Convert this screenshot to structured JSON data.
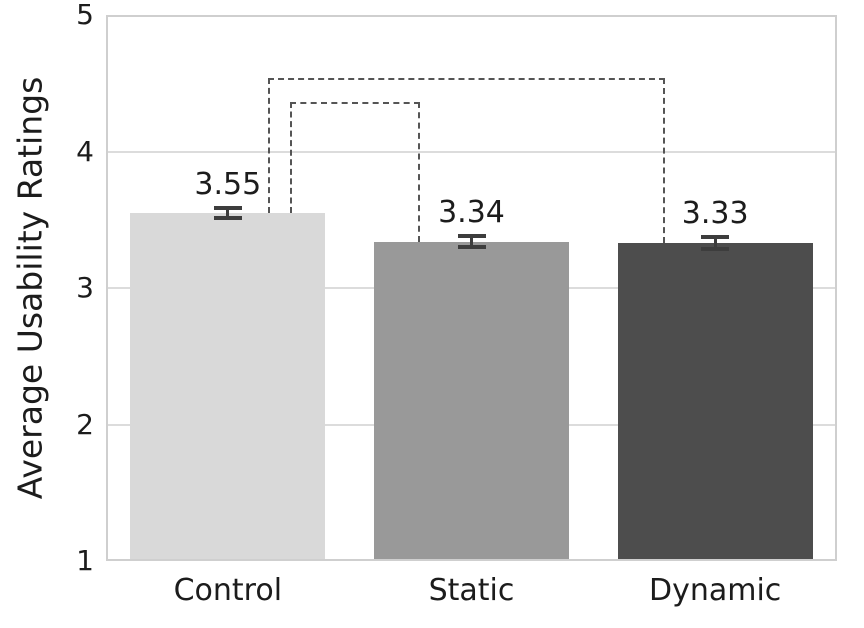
{
  "chart_data": {
    "type": "bar",
    "title": "",
    "xlabel": "",
    "ylabel": "Average Usability Ratings",
    "categories": [
      "Control",
      "Static",
      "Dynamic"
    ],
    "values": [
      3.55,
      3.34,
      3.33
    ],
    "value_labels": [
      "3.55",
      "3.34",
      "3.33"
    ],
    "errors": [
      0.045,
      0.05,
      0.05
    ],
    "bar_colors": [
      "#d9d9d9",
      "#999999",
      "#4d4d4d"
    ],
    "ylim": [
      1,
      5
    ],
    "yticks": [
      "1",
      "2",
      "3",
      "4",
      "5"
    ],
    "ytick_values": [
      1,
      2,
      3,
      4,
      5
    ],
    "gridline_values": [
      2,
      3,
      4
    ],
    "grid": true,
    "legend": "none",
    "colors": {
      "grid": "#dcdcdc",
      "frame": "#cfcfcf",
      "error_bar": "#3d3d3d",
      "bracket": "#555555",
      "text": "#1c1c1c",
      "background": "#ffffff"
    },
    "annotations": {
      "brackets": [
        {
          "pair": "Control-Static",
          "x1_frac": 0.2517,
          "x2_frac": 0.4296,
          "level": 4.36,
          "drop1_to_value": 3.55,
          "drop2_to_value": 3.34
        },
        {
          "pair": "Control-Dynamic",
          "x1_frac": 0.2216,
          "x2_frac": 0.7647,
          "level": 4.54,
          "drop1_to_value": 3.55,
          "drop2_to_value": 3.33
        }
      ]
    }
  }
}
